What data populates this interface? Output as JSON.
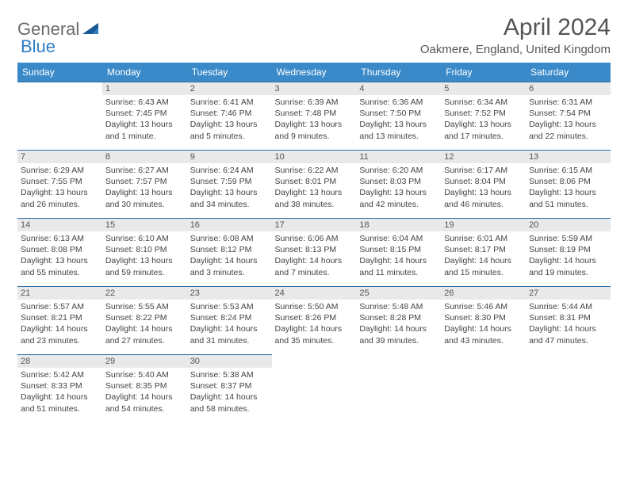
{
  "logo": {
    "text1": "General",
    "text2": "Blue"
  },
  "title": "April 2024",
  "location": "Oakmere, England, United Kingdom",
  "colors": {
    "header_bg": "#3a8ac9",
    "header_text": "#ffffff",
    "daynum_bg": "#e9e9e9",
    "border": "#2f6fa8",
    "logo_blue": "#2f7dc4",
    "text": "#444444"
  },
  "dayHeaders": [
    "Sunday",
    "Monday",
    "Tuesday",
    "Wednesday",
    "Thursday",
    "Friday",
    "Saturday"
  ],
  "weeks": [
    [
      null,
      {
        "n": "1",
        "sr": "Sunrise: 6:43 AM",
        "ss": "Sunset: 7:45 PM",
        "dl": "Daylight: 13 hours and 1 minute."
      },
      {
        "n": "2",
        "sr": "Sunrise: 6:41 AM",
        "ss": "Sunset: 7:46 PM",
        "dl": "Daylight: 13 hours and 5 minutes."
      },
      {
        "n": "3",
        "sr": "Sunrise: 6:39 AM",
        "ss": "Sunset: 7:48 PM",
        "dl": "Daylight: 13 hours and 9 minutes."
      },
      {
        "n": "4",
        "sr": "Sunrise: 6:36 AM",
        "ss": "Sunset: 7:50 PM",
        "dl": "Daylight: 13 hours and 13 minutes."
      },
      {
        "n": "5",
        "sr": "Sunrise: 6:34 AM",
        "ss": "Sunset: 7:52 PM",
        "dl": "Daylight: 13 hours and 17 minutes."
      },
      {
        "n": "6",
        "sr": "Sunrise: 6:31 AM",
        "ss": "Sunset: 7:54 PM",
        "dl": "Daylight: 13 hours and 22 minutes."
      }
    ],
    [
      {
        "n": "7",
        "sr": "Sunrise: 6:29 AM",
        "ss": "Sunset: 7:55 PM",
        "dl": "Daylight: 13 hours and 26 minutes."
      },
      {
        "n": "8",
        "sr": "Sunrise: 6:27 AM",
        "ss": "Sunset: 7:57 PM",
        "dl": "Daylight: 13 hours and 30 minutes."
      },
      {
        "n": "9",
        "sr": "Sunrise: 6:24 AM",
        "ss": "Sunset: 7:59 PM",
        "dl": "Daylight: 13 hours and 34 minutes."
      },
      {
        "n": "10",
        "sr": "Sunrise: 6:22 AM",
        "ss": "Sunset: 8:01 PM",
        "dl": "Daylight: 13 hours and 38 minutes."
      },
      {
        "n": "11",
        "sr": "Sunrise: 6:20 AM",
        "ss": "Sunset: 8:03 PM",
        "dl": "Daylight: 13 hours and 42 minutes."
      },
      {
        "n": "12",
        "sr": "Sunrise: 6:17 AM",
        "ss": "Sunset: 8:04 PM",
        "dl": "Daylight: 13 hours and 46 minutes."
      },
      {
        "n": "13",
        "sr": "Sunrise: 6:15 AM",
        "ss": "Sunset: 8:06 PM",
        "dl": "Daylight: 13 hours and 51 minutes."
      }
    ],
    [
      {
        "n": "14",
        "sr": "Sunrise: 6:13 AM",
        "ss": "Sunset: 8:08 PM",
        "dl": "Daylight: 13 hours and 55 minutes."
      },
      {
        "n": "15",
        "sr": "Sunrise: 6:10 AM",
        "ss": "Sunset: 8:10 PM",
        "dl": "Daylight: 13 hours and 59 minutes."
      },
      {
        "n": "16",
        "sr": "Sunrise: 6:08 AM",
        "ss": "Sunset: 8:12 PM",
        "dl": "Daylight: 14 hours and 3 minutes."
      },
      {
        "n": "17",
        "sr": "Sunrise: 6:06 AM",
        "ss": "Sunset: 8:13 PM",
        "dl": "Daylight: 14 hours and 7 minutes."
      },
      {
        "n": "18",
        "sr": "Sunrise: 6:04 AM",
        "ss": "Sunset: 8:15 PM",
        "dl": "Daylight: 14 hours and 11 minutes."
      },
      {
        "n": "19",
        "sr": "Sunrise: 6:01 AM",
        "ss": "Sunset: 8:17 PM",
        "dl": "Daylight: 14 hours and 15 minutes."
      },
      {
        "n": "20",
        "sr": "Sunrise: 5:59 AM",
        "ss": "Sunset: 8:19 PM",
        "dl": "Daylight: 14 hours and 19 minutes."
      }
    ],
    [
      {
        "n": "21",
        "sr": "Sunrise: 5:57 AM",
        "ss": "Sunset: 8:21 PM",
        "dl": "Daylight: 14 hours and 23 minutes."
      },
      {
        "n": "22",
        "sr": "Sunrise: 5:55 AM",
        "ss": "Sunset: 8:22 PM",
        "dl": "Daylight: 14 hours and 27 minutes."
      },
      {
        "n": "23",
        "sr": "Sunrise: 5:53 AM",
        "ss": "Sunset: 8:24 PM",
        "dl": "Daylight: 14 hours and 31 minutes."
      },
      {
        "n": "24",
        "sr": "Sunrise: 5:50 AM",
        "ss": "Sunset: 8:26 PM",
        "dl": "Daylight: 14 hours and 35 minutes."
      },
      {
        "n": "25",
        "sr": "Sunrise: 5:48 AM",
        "ss": "Sunset: 8:28 PM",
        "dl": "Daylight: 14 hours and 39 minutes."
      },
      {
        "n": "26",
        "sr": "Sunrise: 5:46 AM",
        "ss": "Sunset: 8:30 PM",
        "dl": "Daylight: 14 hours and 43 minutes."
      },
      {
        "n": "27",
        "sr": "Sunrise: 5:44 AM",
        "ss": "Sunset: 8:31 PM",
        "dl": "Daylight: 14 hours and 47 minutes."
      }
    ],
    [
      {
        "n": "28",
        "sr": "Sunrise: 5:42 AM",
        "ss": "Sunset: 8:33 PM",
        "dl": "Daylight: 14 hours and 51 minutes."
      },
      {
        "n": "29",
        "sr": "Sunrise: 5:40 AM",
        "ss": "Sunset: 8:35 PM",
        "dl": "Daylight: 14 hours and 54 minutes."
      },
      {
        "n": "30",
        "sr": "Sunrise: 5:38 AM",
        "ss": "Sunset: 8:37 PM",
        "dl": "Daylight: 14 hours and 58 minutes."
      },
      null,
      null,
      null,
      null
    ]
  ]
}
